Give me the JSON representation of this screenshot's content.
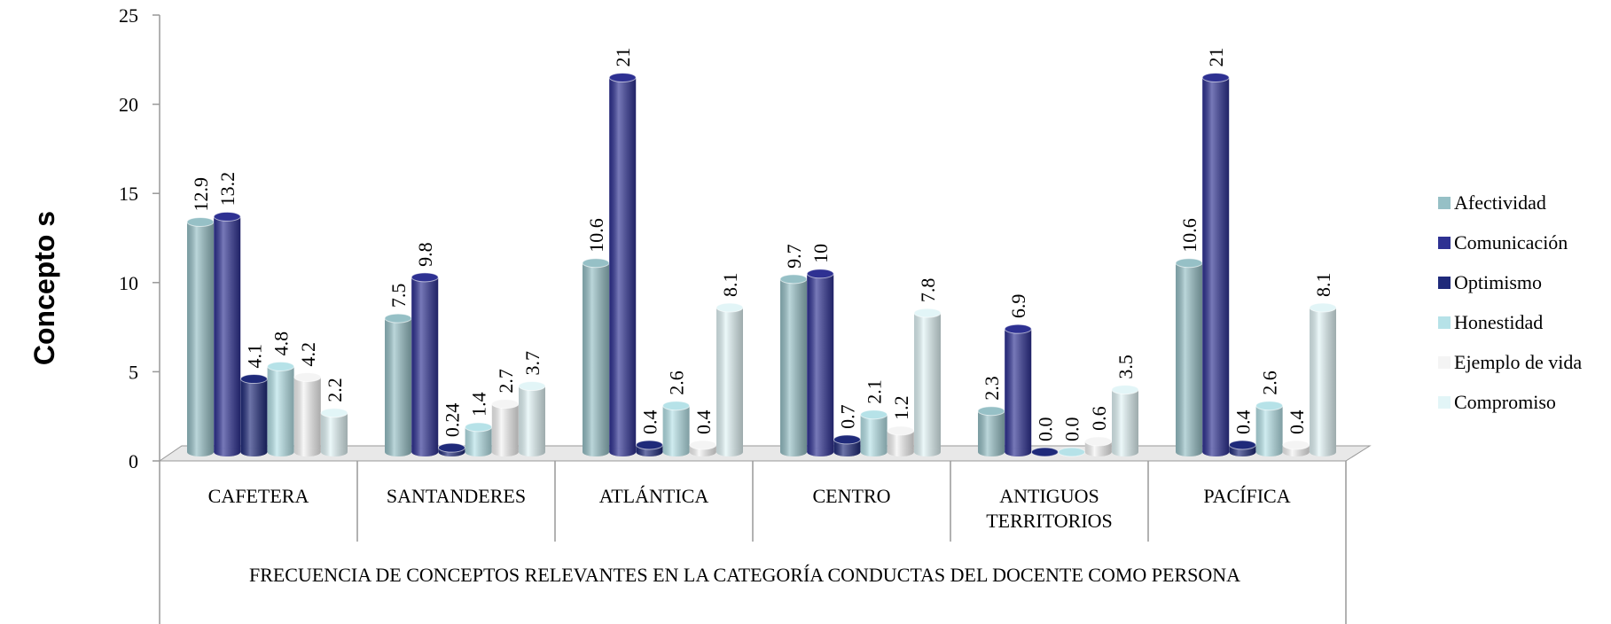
{
  "chart_data": {
    "type": "bar3d",
    "y_label": "Concepto s",
    "x_label": "FRECUENCIA DE CONCEPTOS RELEVANTES EN LA CATEGORÍA CONDUCTAS DEL DOCENTE COMO PERSONA",
    "categories": [
      "CAFETERA",
      "SANTANDERES",
      "ATLÁNTICA",
      "CENTRO",
      "ANTIGUOS TERRITORIOS",
      "PACÍFICA"
    ],
    "series": [
      {
        "name": "Afectividad",
        "color": "#96c0c6",
        "values": [
          12.9,
          7.5,
          10.6,
          9.7,
          2.3,
          10.6
        ]
      },
      {
        "name": "Comunicación",
        "color": "#2e3192",
        "values": [
          13.2,
          9.8,
          21,
          10,
          6.9,
          21
        ]
      },
      {
        "name": "Optimismo",
        "color": "#1f2a7a",
        "values": [
          4.1,
          0.24,
          0.4,
          0.7,
          0.0,
          0.4
        ],
        "value_labels": [
          "4.1",
          "0.24",
          "0.4",
          "0.7",
          "0.0",
          "0.4"
        ]
      },
      {
        "name": "Honestidad",
        "color": "#b6e2e8",
        "values": [
          4.8,
          1.4,
          2.6,
          2.1,
          0.0,
          2.6
        ],
        "value_labels": [
          "4.8",
          "1.4",
          "2.6",
          "2.1",
          "0.0",
          "2.6"
        ]
      },
      {
        "name": "Ejemplo de vida",
        "color": "#f4f4f4",
        "values": [
          4.2,
          2.7,
          0.4,
          1.2,
          0.6,
          0.4
        ]
      },
      {
        "name": "Compromiso",
        "color": "#e2f5f7",
        "values": [
          2.2,
          3.7,
          8.1,
          7.8,
          3.5,
          8.1
        ]
      }
    ],
    "ylim": [
      0,
      25
    ],
    "yticks": [
      0,
      5,
      10,
      15,
      20,
      25
    ],
    "legend": "right"
  }
}
